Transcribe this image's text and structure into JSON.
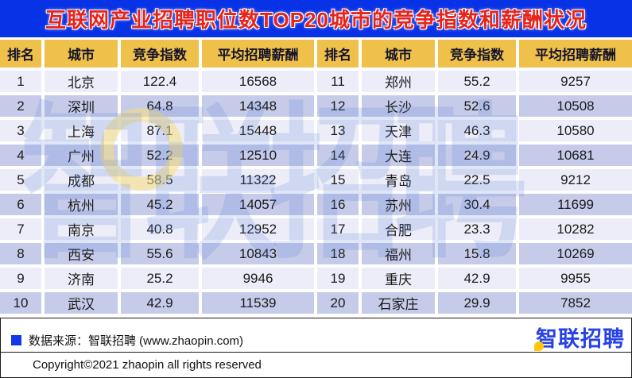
{
  "title": "互联网产业招聘职位数TOP20城市的竞争指数和薪酬状况",
  "table": {
    "columns": [
      "排名",
      "城市",
      "竞争指数",
      "平均招聘薪酬"
    ],
    "left_rows": [
      {
        "rank": "1",
        "city": "北京",
        "index": "122.4",
        "salary": "16568"
      },
      {
        "rank": "2",
        "city": "深圳",
        "index": "64.8",
        "salary": "14348"
      },
      {
        "rank": "3",
        "city": "上海",
        "index": "87.1",
        "salary": "15448"
      },
      {
        "rank": "4",
        "city": "广州",
        "index": "52.2",
        "salary": "12510"
      },
      {
        "rank": "5",
        "city": "成都",
        "index": "58.5",
        "salary": "11322"
      },
      {
        "rank": "6",
        "city": "杭州",
        "index": "45.2",
        "salary": "14057"
      },
      {
        "rank": "7",
        "city": "南京",
        "index": "40.8",
        "salary": "12952"
      },
      {
        "rank": "8",
        "city": "西安",
        "index": "55.6",
        "salary": "10843"
      },
      {
        "rank": "9",
        "city": "济南",
        "index": "25.2",
        "salary": "9946"
      },
      {
        "rank": "10",
        "city": "武汉",
        "index": "42.9",
        "salary": "11539"
      }
    ],
    "right_rows": [
      {
        "rank": "11",
        "city": "郑州",
        "index": "55.2",
        "salary": "9257"
      },
      {
        "rank": "12",
        "city": "长沙",
        "index": "52.6",
        "salary": "10508"
      },
      {
        "rank": "13",
        "city": "天津",
        "index": "46.3",
        "salary": "10580"
      },
      {
        "rank": "14",
        "city": "大连",
        "index": "24.9",
        "salary": "10681"
      },
      {
        "rank": "15",
        "city": "青岛",
        "index": "22.5",
        "salary": "9212"
      },
      {
        "rank": "16",
        "city": "苏州",
        "index": "30.4",
        "salary": "11699"
      },
      {
        "rank": "17",
        "city": "合肥",
        "index": "23.3",
        "salary": "10282"
      },
      {
        "rank": "18",
        "city": "福州",
        "index": "15.8",
        "salary": "10269"
      },
      {
        "rank": "19",
        "city": "重庆",
        "index": "42.9",
        "salary": "9955"
      },
      {
        "rank": "20",
        "city": "石家庄",
        "index": "29.9",
        "salary": "7852"
      }
    ]
  },
  "watermark_text": "智联招聘",
  "footer": {
    "source_text": "数据来源：智联招聘 (www.zhaopin.com)",
    "copyright": "Copyright©2021 zhaopin all rights reserved",
    "logo_text": "智联招聘"
  },
  "colors": {
    "banner_blue": "#0832e6",
    "title_red": "#e8231a",
    "header_gold": "#efc14b",
    "row_light": "#ecedf8",
    "row_dark": "#c5cbe9",
    "logo_blue": "#2742e6",
    "pin_yellow": "#ffc800",
    "bullet_blue": "#1238e8"
  },
  "chart_data": {
    "type": "table",
    "title": "互联网产业招聘职位数TOP20城市的竞争指数和薪酬状况",
    "columns": [
      "排名",
      "城市",
      "竞争指数",
      "平均招聘薪酬"
    ],
    "rows": [
      [
        1,
        "北京",
        122.4,
        16568
      ],
      [
        2,
        "深圳",
        64.8,
        14348
      ],
      [
        3,
        "上海",
        87.1,
        15448
      ],
      [
        4,
        "广州",
        52.2,
        12510
      ],
      [
        5,
        "成都",
        58.5,
        11322
      ],
      [
        6,
        "杭州",
        45.2,
        14057
      ],
      [
        7,
        "南京",
        40.8,
        12952
      ],
      [
        8,
        "西安",
        55.6,
        10843
      ],
      [
        9,
        "济南",
        25.2,
        9946
      ],
      [
        10,
        "武汉",
        42.9,
        11539
      ],
      [
        11,
        "郑州",
        55.2,
        9257
      ],
      [
        12,
        "长沙",
        52.6,
        10508
      ],
      [
        13,
        "天津",
        46.3,
        10580
      ],
      [
        14,
        "大连",
        24.9,
        10681
      ],
      [
        15,
        "青岛",
        22.5,
        9212
      ],
      [
        16,
        "苏州",
        30.4,
        11699
      ],
      [
        17,
        "合肥",
        23.3,
        10282
      ],
      [
        18,
        "福州",
        15.8,
        10269
      ],
      [
        19,
        "重庆",
        42.9,
        9955
      ],
      [
        20,
        "石家庄",
        29.9,
        7852
      ]
    ]
  }
}
